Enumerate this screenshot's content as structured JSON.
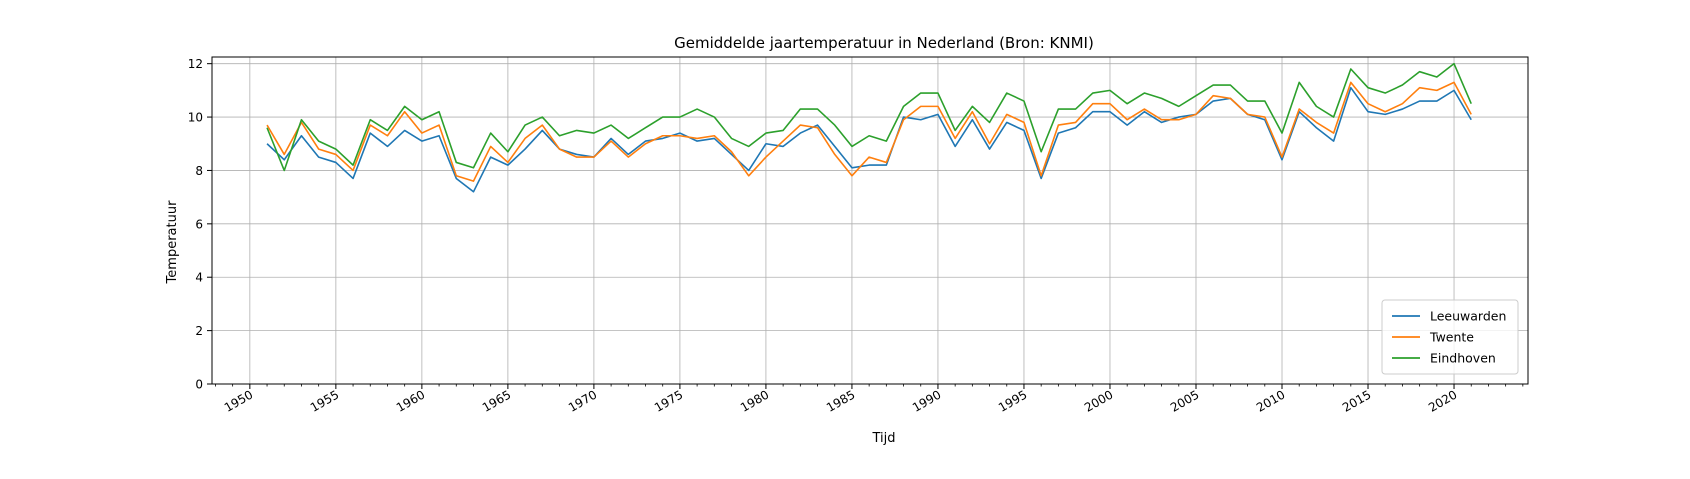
{
  "chart_data": {
    "type": "line",
    "title": "Gemiddelde jaartemperatuur in Nederland (Bron: KNMI)",
    "xlabel": "Tijd",
    "ylabel": "Temperatuur",
    "xlim": [
      1947.8,
      2024.3
    ],
    "ylim": [
      0,
      12.25
    ],
    "xticks": [
      1950,
      1955,
      1960,
      1965,
      1970,
      1975,
      1980,
      1985,
      1990,
      1995,
      2000,
      2005,
      2010,
      2015,
      2020
    ],
    "yticks": [
      0,
      2,
      4,
      6,
      8,
      10,
      12
    ],
    "grid": true,
    "legend_position": "lower-right",
    "x": [
      1951,
      1952,
      1953,
      1954,
      1955,
      1956,
      1957,
      1958,
      1959,
      1960,
      1961,
      1962,
      1963,
      1964,
      1965,
      1966,
      1967,
      1968,
      1969,
      1970,
      1971,
      1972,
      1973,
      1974,
      1975,
      1976,
      1977,
      1978,
      1979,
      1980,
      1981,
      1982,
      1983,
      1984,
      1985,
      1986,
      1987,
      1988,
      1989,
      1990,
      1991,
      1992,
      1993,
      1994,
      1995,
      1996,
      1997,
      1998,
      1999,
      2000,
      2001,
      2002,
      2003,
      2004,
      2005,
      2006,
      2007,
      2008,
      2009,
      2010,
      2011,
      2012,
      2013,
      2014,
      2015,
      2016,
      2017,
      2018,
      2019,
      2020,
      2021
    ],
    "series": [
      {
        "name": "Leeuwarden",
        "color": "#1f77b4",
        "values": [
          9.0,
          8.4,
          9.3,
          8.5,
          8.3,
          7.7,
          9.4,
          8.9,
          9.5,
          9.1,
          9.3,
          7.7,
          7.2,
          8.5,
          8.2,
          8.8,
          9.5,
          8.8,
          8.6,
          8.5,
          9.2,
          8.6,
          9.1,
          9.2,
          9.4,
          9.1,
          9.2,
          8.6,
          8.0,
          9.0,
          8.9,
          9.4,
          9.7,
          8.9,
          8.1,
          8.2,
          8.2,
          10.0,
          9.9,
          10.1,
          8.9,
          9.9,
          8.8,
          9.8,
          9.5,
          7.7,
          9.4,
          9.6,
          10.2,
          10.2,
          9.7,
          10.2,
          9.8,
          10.0,
          10.1,
          10.6,
          10.7,
          10.1,
          9.9,
          8.4,
          10.2,
          9.6,
          9.1,
          11.1,
          10.2,
          10.1,
          10.3,
          10.6,
          10.6,
          11.0,
          9.9
        ]
      },
      {
        "name": "Twente",
        "color": "#ff7f0e",
        "values": [
          9.7,
          8.6,
          9.8,
          8.8,
          8.6,
          8.0,
          9.7,
          9.3,
          10.2,
          9.4,
          9.7,
          7.8,
          7.6,
          8.9,
          8.3,
          9.2,
          9.7,
          8.8,
          8.5,
          8.5,
          9.1,
          8.5,
          9.0,
          9.3,
          9.3,
          9.2,
          9.3,
          8.7,
          7.8,
          8.5,
          9.1,
          9.7,
          9.6,
          8.6,
          7.8,
          8.5,
          8.3,
          9.9,
          10.4,
          10.4,
          9.2,
          10.2,
          9.0,
          10.1,
          9.8,
          7.8,
          9.7,
          9.8,
          10.5,
          10.5,
          9.9,
          10.3,
          9.9,
          9.9,
          10.1,
          10.8,
          10.7,
          10.1,
          10.0,
          8.5,
          10.3,
          9.8,
          9.4,
          11.3,
          10.5,
          10.2,
          10.5,
          11.1,
          11.0,
          11.3,
          10.1
        ]
      },
      {
        "name": "Eindhoven",
        "color": "#2ca02c",
        "values": [
          9.6,
          8.0,
          9.9,
          9.1,
          8.8,
          8.2,
          9.9,
          9.5,
          10.4,
          9.9,
          10.2,
          8.3,
          8.1,
          9.4,
          8.7,
          9.7,
          10.0,
          9.3,
          9.5,
          9.4,
          9.7,
          9.2,
          9.6,
          10.0,
          10.0,
          10.3,
          10.0,
          9.2,
          8.9,
          9.4,
          9.5,
          10.3,
          10.3,
          9.7,
          8.9,
          9.3,
          9.1,
          10.4,
          10.9,
          10.9,
          9.5,
          10.4,
          9.8,
          10.9,
          10.6,
          8.7,
          10.3,
          10.3,
          10.9,
          11.0,
          10.5,
          10.9,
          10.7,
          10.4,
          10.8,
          11.2,
          11.2,
          10.6,
          10.6,
          9.4,
          11.3,
          10.4,
          10.0,
          11.8,
          11.1,
          10.9,
          11.2,
          11.7,
          11.5,
          12.0,
          10.5
        ]
      }
    ]
  }
}
